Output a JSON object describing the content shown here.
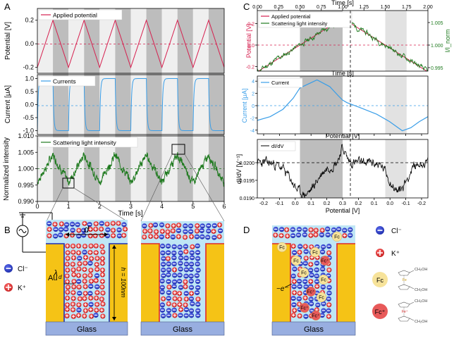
{
  "panels": {
    "A": {
      "label": "A",
      "legend_potential": "Applied potential",
      "legend_current": "Currents",
      "legend_scatter": "Scattering light intensity",
      "xlabel": "Time [s]"
    },
    "B": {
      "label": "B",
      "d_label": "d",
      "lambda_label": "λ",
      "lambda_sub": "d",
      "h_label": "h = 100nm",
      "au_label": "Au",
      "glass_label": "Glass",
      "glass_label_2": "Glass",
      "cl_label": "Cl⁻",
      "k_label": "K⁺"
    },
    "C": {
      "label": "C",
      "top_time_label": "Time [s]",
      "legend_potential": "Applied potential",
      "legend_scatter": "Scattering light intensity",
      "mid_time_label": "Time [s]",
      "legend_current": "Current",
      "mid_potential_label": "Potential [V]",
      "legend_didv": "dI/dV",
      "bottom_potential_label": "Potential [V]"
    },
    "D": {
      "label": "D",
      "glass_label": "Glass",
      "electron_label": "−e⁻",
      "fc_label": "Fc",
      "fcp_label": "Fc⁺",
      "cl_label": "Cl⁻",
      "k_label": "K⁺",
      "ch2oh_label": "CH₂OH",
      "fe_label": "Fe",
      "fep_label": "Fe⁺"
    }
  },
  "colors": {
    "potential": "#d6204f",
    "current": "#3a9ee8",
    "scatter": "#1f7a1f",
    "gold": "#f5c316",
    "electrolyte": "#bfe6f5",
    "glass": "#98aee0",
    "anion": "#1e2fb8",
    "cation": "#e02a2a",
    "fc": "#f7e39a",
    "fcp": "#e85a5a"
  },
  "chart_data": [
    {
      "id": "A-potential",
      "type": "line",
      "ylabel": "Potential [V]",
      "xlim": [
        0,
        6
      ],
      "ylim": [
        -0.25,
        0.3
      ],
      "yticks": [
        "0.2",
        "0.0",
        "-0.2"
      ],
      "ytick_values": [
        0.2,
        0.0,
        -0.2
      ],
      "series": [
        {
          "name": "Applied potential",
          "x": [
            0,
            0.5,
            1,
            1.5,
            2,
            2.5,
            3,
            3.5,
            4,
            4.5,
            5,
            5.5,
            6
          ],
          "y": [
            -0.2,
            0.2,
            -0.2,
            0.2,
            -0.2,
            0.2,
            -0.2,
            0.2,
            -0.2,
            0.2,
            -0.2,
            0.2,
            -0.2
          ]
        }
      ]
    },
    {
      "id": "A-current",
      "type": "line",
      "ylabel": "Current [μA]",
      "xlim": [
        0,
        6
      ],
      "ylim": [
        -1.15,
        1.15
      ],
      "yticks": [
        "1.0",
        "0.5",
        "0.0",
        "-0.5",
        "-1.0"
      ],
      "ytick_values": [
        1.0,
        0.5,
        0.0,
        -0.5,
        -1.0
      ],
      "series": [
        {
          "name": "Currents",
          "pattern": "square wave, +1.0 on rising half, -1.0 on falling half, period 1 s"
        }
      ]
    },
    {
      "id": "A-scatter",
      "type": "line",
      "ylabel": "Normalized intensity",
      "xlabel": "Time [s]",
      "xlim": [
        0,
        6
      ],
      "ylim": [
        0.99,
        1.01
      ],
      "xticks": [
        "0",
        "1",
        "2",
        "3",
        "4",
        "5",
        "6"
      ],
      "xtick_values": [
        0,
        1,
        2,
        3,
        4,
        5,
        6
      ],
      "yticks": [
        "1.010",
        "1.005",
        "1.000",
        "0.995",
        "0.990"
      ],
      "ytick_values": [
        1.01,
        1.005,
        1.0,
        0.995,
        0.99
      ],
      "series": [
        {
          "name": "Scattering light intensity",
          "pattern": "noisy triangle wave in phase with potential, mean 1.000, amplitude 0.004"
        }
      ]
    },
    {
      "id": "C-top",
      "type": "line",
      "top_xlabel": "Time [s]",
      "ylabel_left": "Potential [V]",
      "ylabel_right": "I/I_norm",
      "xlim": [
        0,
        2
      ],
      "top_xticks": [
        "0.00",
        "0.25",
        "0.50",
        "0.75",
        "1.00",
        "1.25",
        "1.50",
        "1.75",
        "2.00"
      ],
      "top_xtick_values": [
        0,
        0.25,
        0.5,
        0.75,
        1.0,
        1.25,
        1.5,
        1.75,
        2.0
      ],
      "yticks_left": [
        "0.2",
        "0.0",
        "-0.2"
      ],
      "ytick_left_values": [
        0.2,
        0.0,
        -0.2
      ],
      "yticks_right": [
        "1.005",
        "1.000",
        "0.995"
      ],
      "ytick_right_values": [
        1.005,
        1.0,
        0.995
      ],
      "series": [
        {
          "name": "Applied potential",
          "x": [
            0,
            1,
            2
          ],
          "y": [
            -0.25,
            0.25,
            -0.25
          ]
        },
        {
          "name": "Scattering light intensity",
          "pattern": "noisy triangle from 0.995 to 1.006 and back"
        }
      ]
    },
    {
      "id": "C-mid",
      "type": "line",
      "ylabel": "Current [μA]",
      "xlabel": "Potential [V]",
      "yticks": [
        "4",
        "2",
        "0",
        "-2",
        "-4"
      ],
      "ytick_values": [
        4,
        2,
        0,
        -2,
        -4
      ],
      "series": [
        {
          "name": "Current",
          "x": [
            0,
            0.15,
            0.3,
            0.42,
            0.5,
            0.7,
            0.85,
            0.95,
            1.0,
            1.05,
            1.2,
            1.4,
            1.55,
            1.7,
            1.8,
            1.9,
            2.0
          ],
          "y": [
            -2.4,
            -1.8,
            -0.6,
            1.2,
            2.9,
            4.2,
            3.1,
            1.6,
            0.9,
            0.5,
            -0.3,
            -1.4,
            -2.6,
            -4.1,
            -3.6,
            -2.6,
            -1.8
          ]
        }
      ]
    },
    {
      "id": "C-bottom",
      "type": "line",
      "ylabel": "dI/dV [V⁻¹]",
      "xlabel": "Potential [V]",
      "xticks": [
        "-0.2",
        "-0.1",
        "0.0",
        "0.1",
        "0.2",
        "0.3",
        "0.2",
        "0.1",
        "0.0",
        "-0.1",
        "-0.2"
      ],
      "yticks": [
        "0.0200",
        "0.0195",
        "0.0190"
      ],
      "ytick_values": [
        0.02,
        0.0195,
        0.019
      ],
      "series": [
        {
          "name": "dI/dV",
          "pattern": "noisy, ~0.0200 at edges, dips to ~0.0190 near 0.15 V, peak ~0.0203 near 0.3 V, dip ~0.0191 near 0.05 V on return"
        }
      ]
    }
  ]
}
